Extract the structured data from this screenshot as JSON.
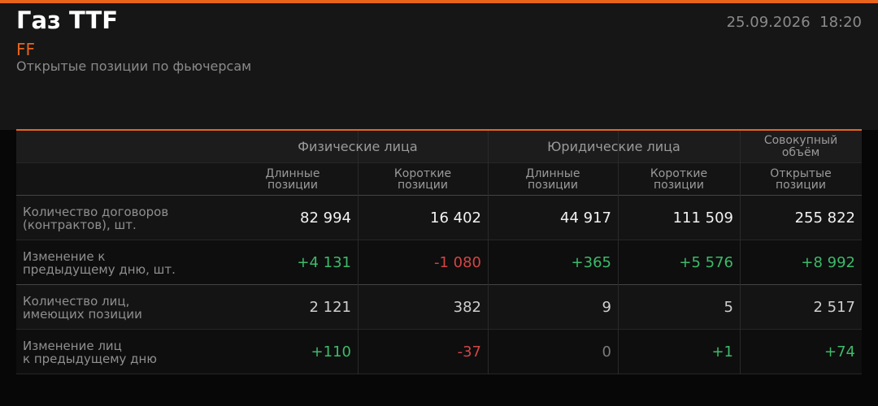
{
  "header": {
    "title": "Газ TTF",
    "code": "FF",
    "subtitle": "Открытые позиции по фьючерсам",
    "datetime": "25.09.2026  18:20"
  },
  "table": {
    "groups": [
      [
        "Физические лица"
      ],
      [
        "Юридические лица"
      ],
      [
        "Совокупный",
        "объём"
      ]
    ],
    "columns": [
      [
        "Длинные",
        "позиции"
      ],
      [
        "Короткие",
        "позиции"
      ],
      [
        "Длинные",
        "позиции"
      ],
      [
        "Короткие",
        "позиции"
      ],
      [
        "Открытые",
        "позиции"
      ]
    ],
    "rows": [
      {
        "label": [
          "Количество договоров",
          "(контрактов), шт."
        ],
        "cells": [
          "82 994",
          "16 402",
          "44 917",
          "111 509",
          "255 822"
        ]
      },
      {
        "label": [
          "Изменение к",
          "предыдущему дню, шт."
        ],
        "cells": [
          "+4 131",
          "-1 080",
          "+365",
          "+5 576",
          "+8 992"
        ]
      },
      {
        "label": [
          "Количество лиц,",
          "имеющих позиции"
        ],
        "cells": [
          "2 121",
          "382",
          "9",
          "5",
          "2 517"
        ]
      },
      {
        "label": [
          "Изменение лиц",
          "к предыдущему дню"
        ],
        "cells": [
          "+110",
          "-37",
          "0",
          "+1",
          "+74"
        ]
      }
    ]
  }
}
